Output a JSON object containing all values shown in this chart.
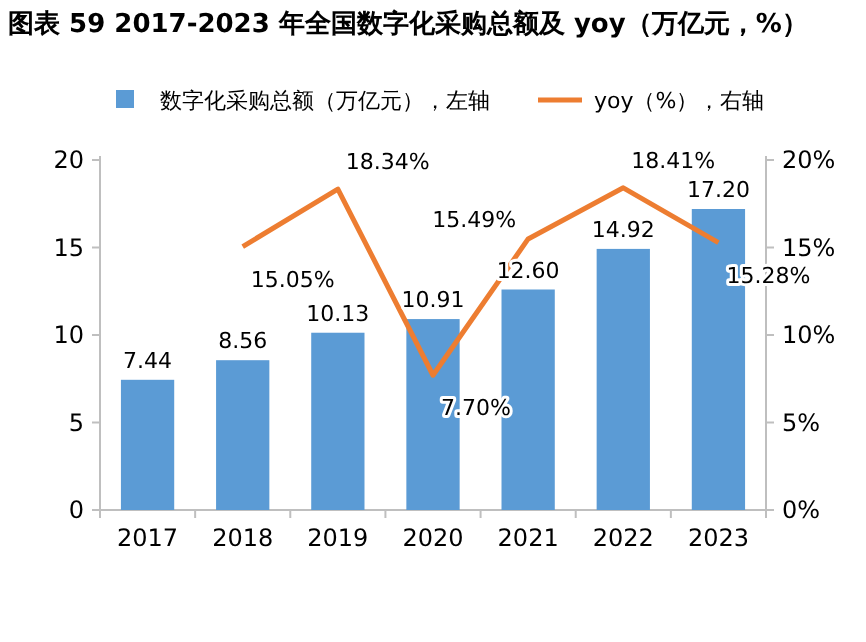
{
  "chart_data": {
    "type": "bar",
    "title": "图表 59 2017-2023 年全国数字化采购总额及 yoy（万亿元，%）",
    "categories": [
      "2017",
      "2018",
      "2019",
      "2020",
      "2021",
      "2022",
      "2023"
    ],
    "series": [
      {
        "name": "数字化采购总额（万亿元），左轴",
        "color": "#5b9bd5",
        "values": [
          7.44,
          8.56,
          10.13,
          10.91,
          12.6,
          14.92,
          17.2
        ],
        "value_labels": [
          "7.44",
          "8.56",
          "10.13",
          "10.91",
          "12.60",
          "14.92",
          "17.20"
        ]
      },
      {
        "name": "yoy（%），右轴",
        "type": "line",
        "axis": "y2",
        "color": "#ed7d31",
        "values": [
          null,
          15.05,
          18.34,
          7.7,
          15.49,
          18.41,
          15.28
        ],
        "value_labels": [
          null,
          "15.05%",
          "18.34%",
          "7.70%",
          "15.49%",
          "18.41%",
          "15.28%"
        ]
      }
    ],
    "ylim": [
      0,
      20
    ],
    "yticks": [
      0,
      5,
      10,
      15,
      20
    ],
    "y2lim": [
      0,
      20
    ],
    "y2ticks": [
      {
        "value": 0,
        "label": "0%"
      },
      {
        "value": 5,
        "label": "5%"
      },
      {
        "value": 10,
        "label": "10%"
      },
      {
        "value": 15,
        "label": "15%"
      },
      {
        "value": 20,
        "label": "20%"
      }
    ],
    "legend": "top",
    "grid": false,
    "marker": "none"
  }
}
